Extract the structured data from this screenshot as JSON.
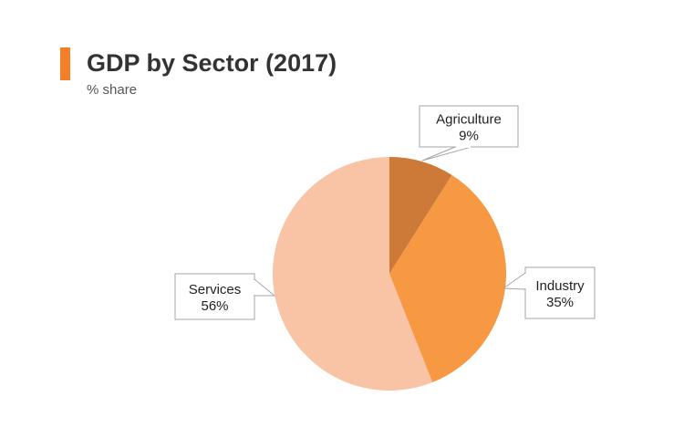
{
  "chart_data": {
    "type": "pie",
    "title": "GDP by Sector (2017)",
    "subtitle": "% share",
    "slices": [
      {
        "name": "Agriculture",
        "value": 9,
        "label": "9%",
        "color": "#cd7a38"
      },
      {
        "name": "Industry",
        "value": 35,
        "label": "35%",
        "color": "#f79843"
      },
      {
        "name": "Services",
        "value": 56,
        "label": "56%",
        "color": "#f9c3a6"
      }
    ],
    "accent_color": "#f47f28"
  }
}
